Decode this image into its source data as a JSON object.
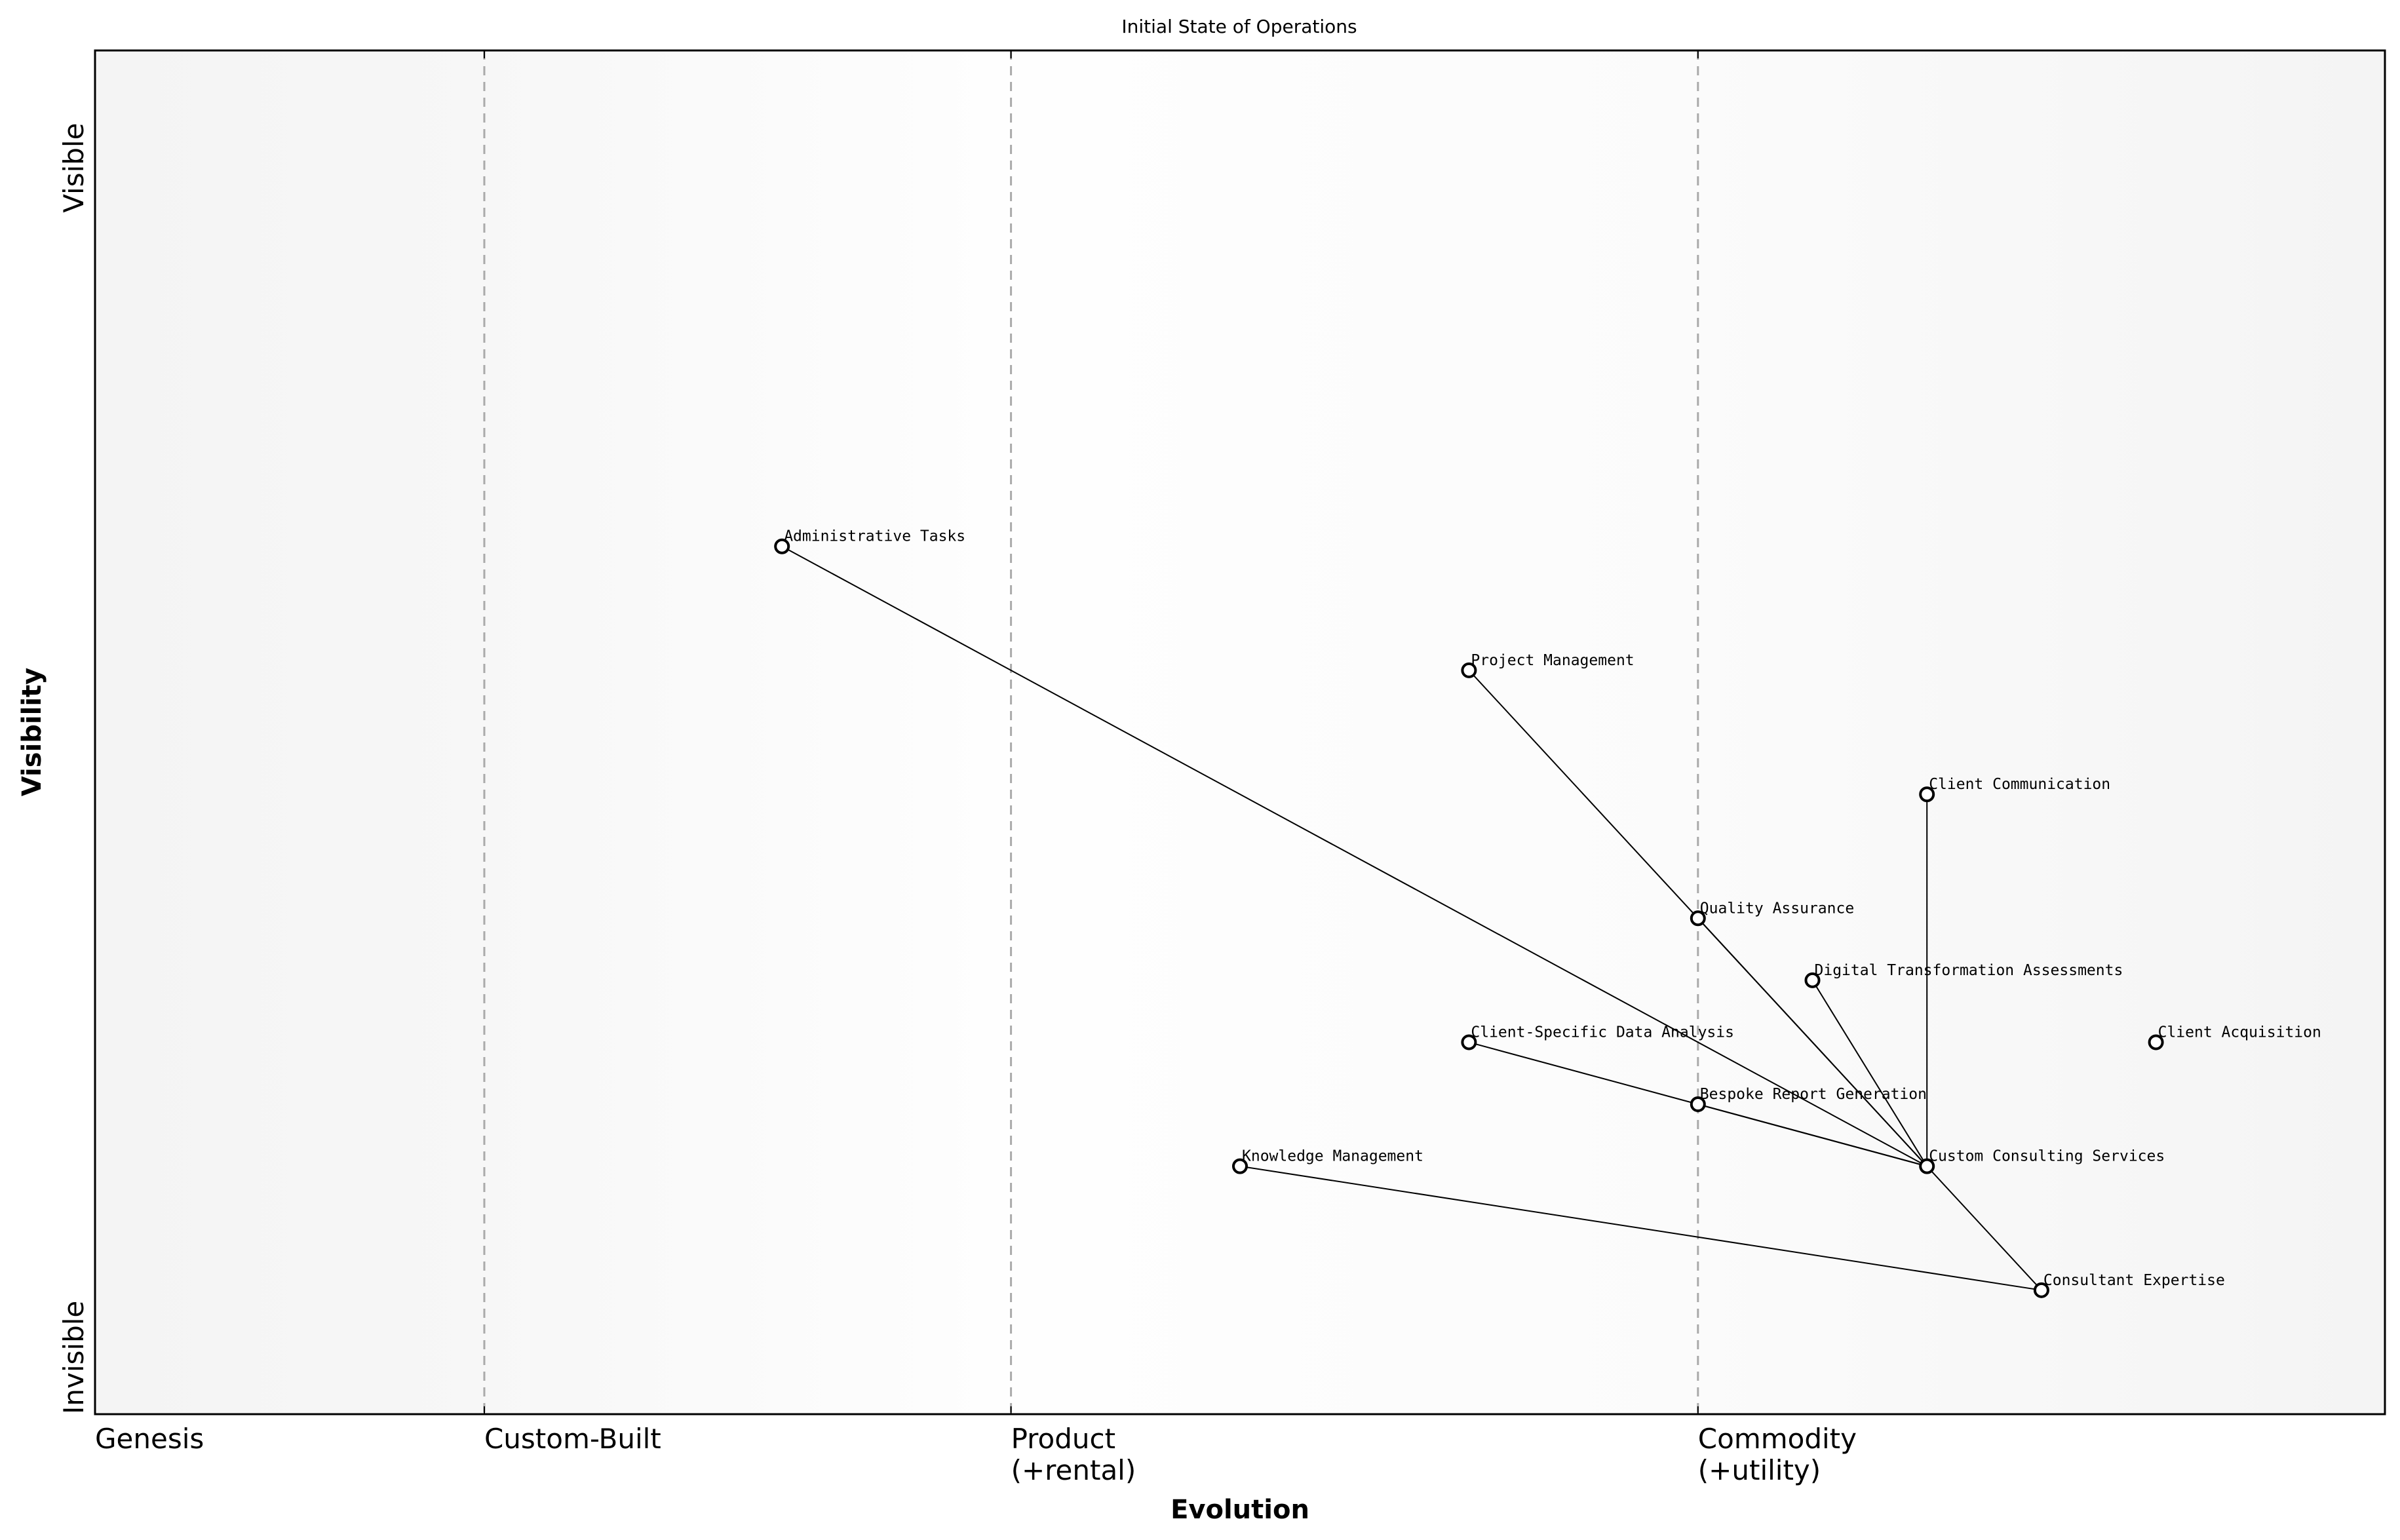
{
  "chart_data": {
    "type": "scatter",
    "title": "Initial State of Operations",
    "xlabel": "Evolution",
    "ylabel": "Visibility",
    "xlim": [
      0,
      1
    ],
    "ylim": [
      0,
      1.1
    ],
    "grid": false,
    "x_ticks": [
      {
        "value": 0,
        "label": "Genesis"
      },
      {
        "value": 0.17,
        "label": "Custom-Built"
      },
      {
        "value": 0.4,
        "label": "Product\n(+rental)"
      },
      {
        "value": 0.7,
        "label": "Commodity\n(+utility)"
      }
    ],
    "y_ticks": [
      {
        "value": 0,
        "label": "Invisible"
      },
      {
        "value": 1,
        "label": "Visible"
      }
    ],
    "stage_dividers": [
      0.17,
      0.4,
      0.7
    ],
    "nodes": [
      {
        "name": "Administrative Tasks",
        "x": 0.3,
        "y": 0.7
      },
      {
        "name": "Project Management",
        "x": 0.6,
        "y": 0.6
      },
      {
        "name": "Client Communication",
        "x": 0.8,
        "y": 0.5
      },
      {
        "name": "Quality Assurance",
        "x": 0.7,
        "y": 0.4
      },
      {
        "name": "Digital Transformation Assessments",
        "x": 0.75,
        "y": 0.35
      },
      {
        "name": "Client-Specific Data Analysis",
        "x": 0.6,
        "y": 0.3
      },
      {
        "name": "Client Acquisition",
        "x": 0.9,
        "y": 0.3
      },
      {
        "name": "Bespoke Report Generation",
        "x": 0.7,
        "y": 0.25
      },
      {
        "name": "Knowledge Management",
        "x": 0.5,
        "y": 0.2
      },
      {
        "name": "Custom Consulting Services",
        "x": 0.8,
        "y": 0.2
      },
      {
        "name": "Consultant Expertise",
        "x": 0.85,
        "y": 0.1
      }
    ],
    "edges": [
      [
        "Administrative Tasks",
        "Custom Consulting Services"
      ],
      [
        "Project Management",
        "Custom Consulting Services"
      ],
      [
        "Quality Assurance",
        "Custom Consulting Services"
      ],
      [
        "Client Communication",
        "Custom Consulting Services"
      ],
      [
        "Digital Transformation Assessments",
        "Custom Consulting Services"
      ],
      [
        "Client-Specific Data Analysis",
        "Custom Consulting Services"
      ],
      [
        "Bespoke Report Generation",
        "Custom Consulting Services"
      ],
      [
        "Custom Consulting Services",
        "Consultant Expertise"
      ],
      [
        "Knowledge Management",
        "Consultant Expertise"
      ]
    ],
    "colors": {
      "edge": "#000000",
      "node_fill": "#ffffff",
      "node_stroke": "#000000",
      "divider": "#aaaaaa",
      "background_edge": "#f4f4f4",
      "background_center": "#fefefe"
    }
  }
}
